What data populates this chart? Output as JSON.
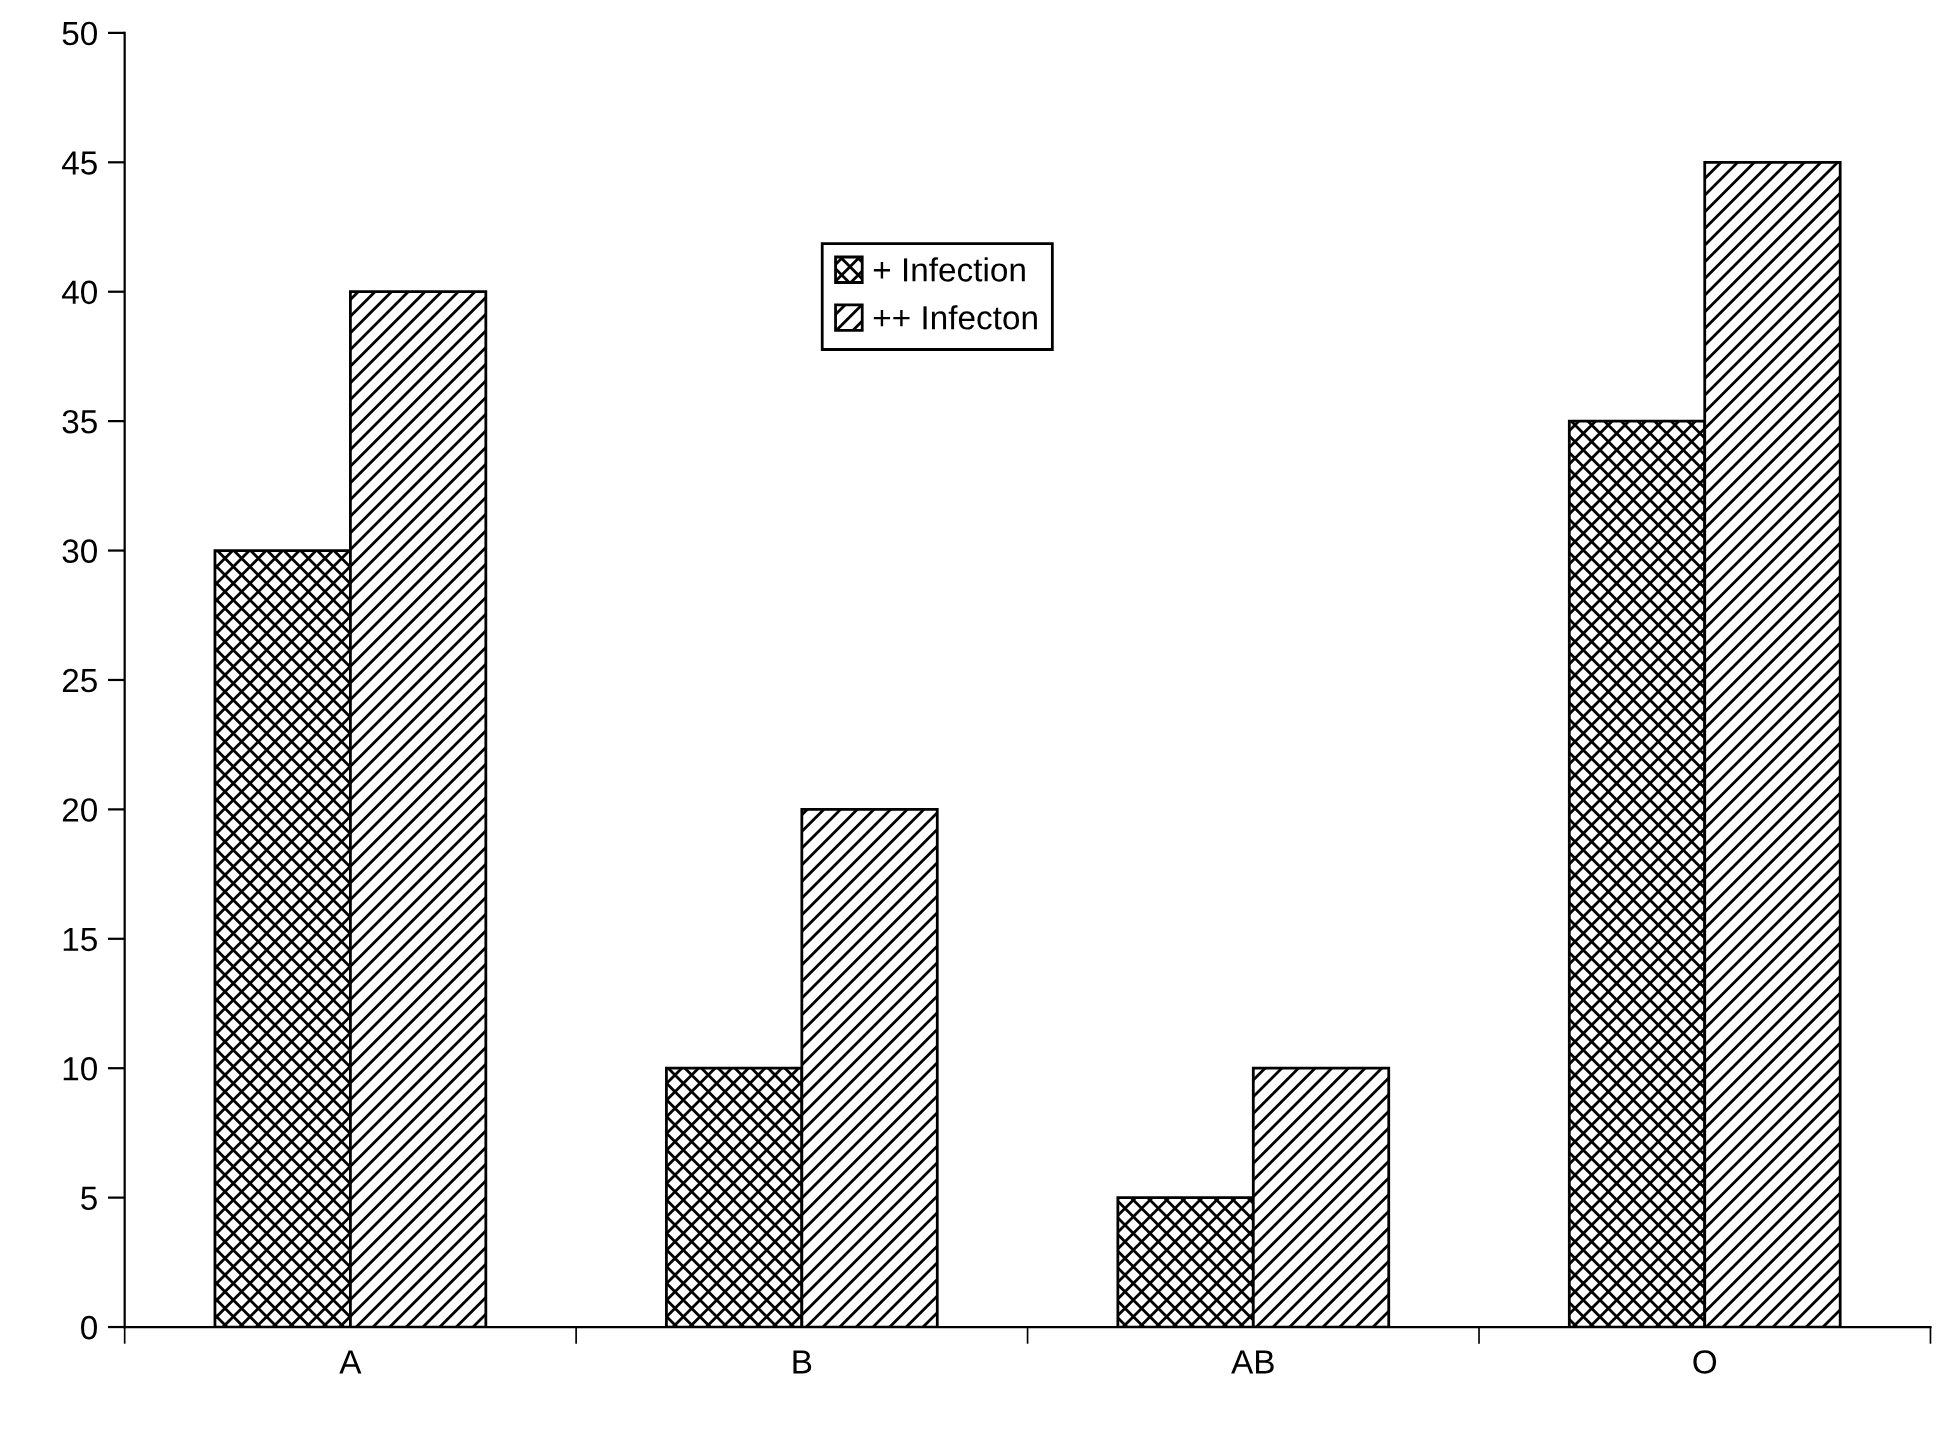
{
  "chart_data": {
    "type": "bar",
    "categories": [
      "A",
      "B",
      "AB",
      "O"
    ],
    "series": [
      {
        "name": "+ Infection",
        "color": "#000000",
        "values": [
          30,
          10,
          5,
          35
        ]
      },
      {
        "name": "++ Infecton",
        "color": "#000000",
        "values": [
          40,
          20,
          10,
          45
        ]
      }
    ],
    "ylim": [
      0,
      50
    ],
    "yticks": [
      0,
      5,
      10,
      15,
      20,
      25,
      30,
      35,
      40,
      45,
      50
    ],
    "grid": false,
    "legend": "top"
  }
}
